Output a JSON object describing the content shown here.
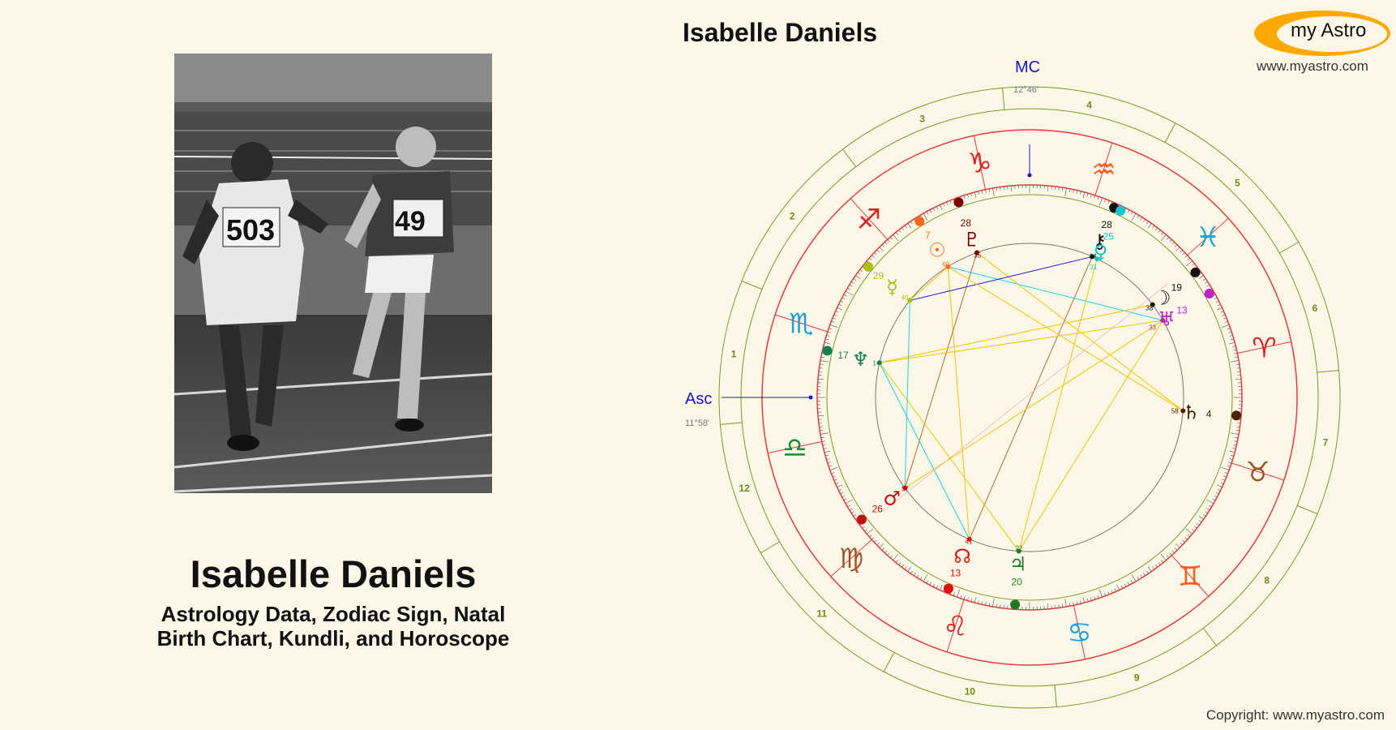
{
  "person": {
    "name": "Isabelle Daniels",
    "subtitle_line1": "Astrology Data, Zodiac Sign, Natal",
    "subtitle_line2": "Birth Chart, Kundli, and Horoscope"
  },
  "chart_title": "Isabelle Daniels",
  "logo": {
    "text": "my Astro",
    "url": "www.myastro.com"
  },
  "copyright": "Copyright: www.myastro.com",
  "colors": {
    "background": "#fdf7e8",
    "ring_green": "#7a9a2a",
    "ring_red": "#e33b3b",
    "axis_blue": "#1515d0",
    "logo_orange": "#ffa800",
    "aspect_yellow": "#f2c400",
    "aspect_cyan": "#1ad3e0"
  },
  "chart": {
    "asc_label": "Asc",
    "asc_degree": "11°58'",
    "mc_label": "MC",
    "mc_degree": "12°46'",
    "house_numbers": [
      "1",
      "2",
      "3",
      "4",
      "5",
      "6",
      "7",
      "8",
      "9",
      "10",
      "11",
      "12"
    ],
    "signs": [
      {
        "name": "libra-sign-icon",
        "glyph": "♎",
        "color": "#1e8a3a"
      },
      {
        "name": "virgo-sign-icon",
        "glyph": "♍",
        "color": "#a0522d"
      },
      {
        "name": "leo-sign-icon",
        "glyph": "♌",
        "color": "#e02020"
      },
      {
        "name": "cancer-sign-icon",
        "glyph": "♋",
        "color": "#1a9fd8"
      },
      {
        "name": "gemini-sign-icon",
        "glyph": "♊",
        "color": "#ff5a1a"
      },
      {
        "name": "taurus-sign-icon",
        "glyph": "♉",
        "color": "#a0522d"
      },
      {
        "name": "aries-sign-icon",
        "glyph": "♈",
        "color": "#e02020"
      },
      {
        "name": "pisces-sign-icon",
        "glyph": "♓",
        "color": "#1a9fd8"
      },
      {
        "name": "aquarius-sign-icon",
        "glyph": "♒",
        "color": "#ff5a1a"
      },
      {
        "name": "capricorn-sign-icon",
        "glyph": "♑",
        "color": "#e02020"
      },
      {
        "name": "sagittarius-sign-icon",
        "glyph": "♐",
        "color": "#e02020"
      },
      {
        "name": "scorpio-sign-icon",
        "glyph": "♏",
        "color": "#1a9fd8"
      }
    ],
    "planets": [
      {
        "name": "sun-icon",
        "glyph": "☉",
        "deg": "7",
        "min": "60",
        "color": "#ff6a1a"
      },
      {
        "name": "pluto-icon",
        "glyph": "♇",
        "deg": "28",
        "min": "35",
        "color": "#7a0000"
      },
      {
        "name": "chiron-icon",
        "glyph": "⚷",
        "deg": "28",
        "min": "14",
        "color": "#111111"
      },
      {
        "name": "venus-icon",
        "glyph": "♀",
        "deg": "25",
        "min": "21",
        "color": "#12c8d0"
      },
      {
        "name": "mercury-icon",
        "glyph": "☿",
        "deg": "29",
        "min": "40",
        "color": "#a8c010"
      },
      {
        "name": "moon-icon",
        "glyph": "☽",
        "deg": "19",
        "min": "38",
        "color": "#111111"
      },
      {
        "name": "uranus-icon",
        "glyph": "♅",
        "deg": "13",
        "min": "33",
        "color": "#c020c8"
      },
      {
        "name": "neptune-icon",
        "glyph": "♆",
        "deg": "17",
        "min": "14",
        "color": "#138050"
      },
      {
        "name": "saturn-icon",
        "glyph": "♄",
        "deg": "4",
        "min": "58",
        "color": "#4a2000"
      },
      {
        "name": "mars-icon",
        "glyph": "♂",
        "deg": "26",
        "min": "37",
        "color": "#c01010"
      },
      {
        "name": "north-node-icon",
        "glyph": "☊",
        "deg": "13",
        "min": "41",
        "color": "#e01010"
      },
      {
        "name": "jupiter-icon",
        "glyph": "♃",
        "deg": "20",
        "min": "22",
        "color": "#1e7a2a"
      }
    ]
  }
}
